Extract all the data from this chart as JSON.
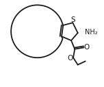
{
  "background_color": "#ffffff",
  "line_color": "#1a1a1a",
  "line_width": 1.3,
  "S_label": "S",
  "NH2_label": "NH₂",
  "O_label": "O",
  "O2_label": "O",
  "figsize": [
    1.52,
    1.27
  ],
  "dpi": 100
}
